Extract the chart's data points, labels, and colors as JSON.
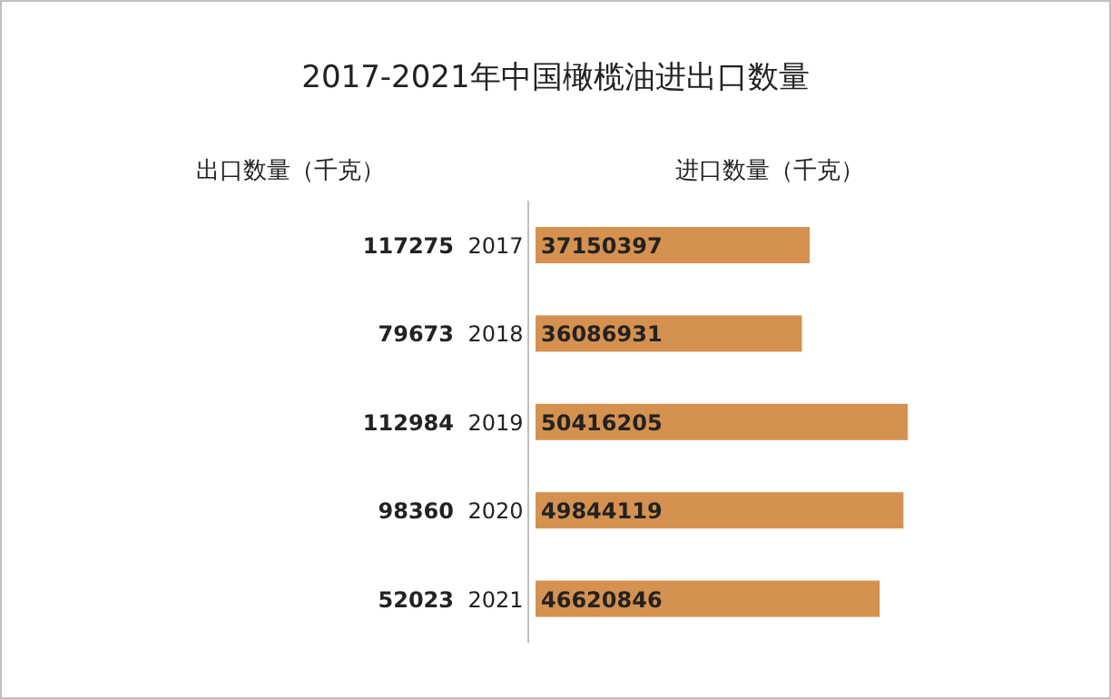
{
  "chart_data": {
    "type": "bar",
    "orientation": "horizontal",
    "title": "2017-2021年中国橄榄油进出口数量",
    "categories": [
      "2017",
      "2018",
      "2019",
      "2020",
      "2021"
    ],
    "series": [
      {
        "name": "进口数量（千克）",
        "color": "#d5914f",
        "values": [
          37150397,
          36086931,
          50416205,
          49844119,
          46620846
        ]
      }
    ],
    "data_labels": true,
    "annotations": [
      "出口数量（千克）",
      "117275",
      "79673",
      "112984",
      "98360",
      "52023"
    ]
  }
}
